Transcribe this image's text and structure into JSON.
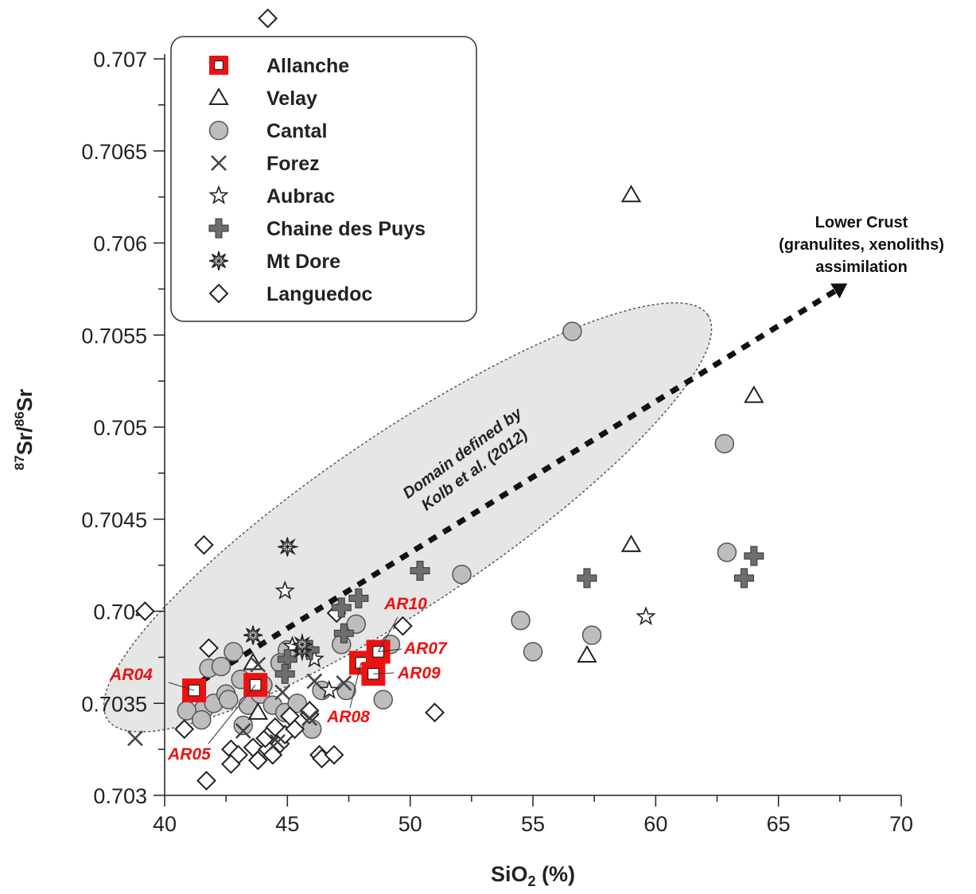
{
  "chart_data": {
    "type": "scatter",
    "xlabel_main": "SiO",
    "xlabel_sub": "2",
    "xlabel_tail": " (%)",
    "ylabel_sup1": "87",
    "ylabel_mid": "Sr/",
    "ylabel_sup2": "86",
    "ylabel_end": "Sr",
    "xlim": [
      40,
      70
    ],
    "ylim": [
      0.703,
      0.707
    ],
    "x_ticks": [
      "40",
      "45",
      "50",
      "55",
      "60",
      "65",
      "70"
    ],
    "y_ticks": [
      "0.703",
      "0.7035",
      "0.704",
      "0.7045",
      "0.705",
      "0.7055",
      "0.706",
      "0.7065",
      "0.707"
    ],
    "legend": [
      {
        "name": "Allanche",
        "marker": "red-square"
      },
      {
        "name": "Velay",
        "marker": "triangle"
      },
      {
        "name": "Cantal",
        "marker": "grey-circle"
      },
      {
        "name": "Forez",
        "marker": "cross-x"
      },
      {
        "name": "Aubrac",
        "marker": "star"
      },
      {
        "name": "Chaine des Puys",
        "marker": "plus"
      },
      {
        "name": "Mt Dore",
        "marker": "spiky-star"
      },
      {
        "name": "Languedoc",
        "marker": "diamond"
      }
    ],
    "series": [
      {
        "name": "Allanche",
        "points": [
          [
            41.2,
            0.70357
          ],
          [
            43.7,
            0.7036
          ],
          [
            48.0,
            0.70372
          ],
          [
            48.5,
            0.70366
          ],
          [
            48.7,
            0.70378
          ]
        ]
      },
      {
        "name": "Velay",
        "points": [
          [
            59.0,
            0.70626
          ],
          [
            64.0,
            0.70517
          ],
          [
            59.0,
            0.70436
          ],
          [
            57.2,
            0.70376
          ],
          [
            43.6,
            0.70372
          ],
          [
            43.8,
            0.70345
          ]
        ]
      },
      {
        "name": "Cantal",
        "points": [
          [
            56.6,
            0.70552
          ],
          [
            62.8,
            0.70491
          ],
          [
            62.9,
            0.70432
          ],
          [
            52.1,
            0.7042
          ],
          [
            54.5,
            0.70395
          ],
          [
            55.0,
            0.70378
          ],
          [
            57.4,
            0.70387
          ],
          [
            47.8,
            0.70393
          ],
          [
            47.2,
            0.70382
          ],
          [
            45.0,
            0.70379
          ],
          [
            44.7,
            0.70372
          ],
          [
            48.4,
            0.70374
          ],
          [
            49.2,
            0.70382
          ],
          [
            48.9,
            0.70352
          ],
          [
            41.8,
            0.70369
          ],
          [
            42.3,
            0.7037
          ],
          [
            42.8,
            0.70378
          ],
          [
            41.6,
            0.70347
          ],
          [
            42.0,
            0.7035
          ],
          [
            42.5,
            0.70355
          ],
          [
            43.4,
            0.70349
          ],
          [
            43.1,
            0.70363
          ],
          [
            43.9,
            0.70355
          ],
          [
            44.4,
            0.70349
          ],
          [
            44.9,
            0.70345
          ],
          [
            45.4,
            0.7035
          ],
          [
            40.9,
            0.70346
          ],
          [
            41.5,
            0.70341
          ],
          [
            42.6,
            0.70352
          ],
          [
            43.2,
            0.70338
          ],
          [
            46.0,
            0.70336
          ],
          [
            46.4,
            0.70357
          ],
          [
            47.4,
            0.70357
          ],
          [
            44.0,
            0.7036
          ]
        ]
      },
      {
        "name": "Forez",
        "points": [
          [
            38.8,
            0.70331
          ],
          [
            46.1,
            0.70362
          ],
          [
            44.8,
            0.70356
          ],
          [
            43.8,
            0.70371
          ],
          [
            47.3,
            0.70361
          ],
          [
            45.9,
            0.70342
          ],
          [
            43.2,
            0.70335
          ],
          [
            44.6,
            0.70329
          ]
        ]
      },
      {
        "name": "Aubrac",
        "points": [
          [
            44.9,
            0.70411
          ],
          [
            59.6,
            0.70397
          ],
          [
            46.1,
            0.70374
          ],
          [
            45.2,
            0.70381
          ],
          [
            46.7,
            0.70357
          ]
        ]
      },
      {
        "name": "Chaine des Puys",
        "points": [
          [
            50.4,
            0.70422
          ],
          [
            57.2,
            0.70418
          ],
          [
            64.0,
            0.7043
          ],
          [
            63.6,
            0.70418
          ],
          [
            47.9,
            0.70407
          ],
          [
            47.2,
            0.70402
          ],
          [
            47.3,
            0.70388
          ],
          [
            45.0,
            0.70374
          ],
          [
            44.9,
            0.70366
          ],
          [
            45.9,
            0.70379
          ]
        ]
      },
      {
        "name": "Mt Dore",
        "points": [
          [
            45.0,
            0.70435
          ],
          [
            43.6,
            0.70387
          ],
          [
            45.6,
            0.70379
          ],
          [
            45.6,
            0.70382
          ]
        ]
      },
      {
        "name": "Languedoc",
        "points": [
          [
            44.2,
            0.70722
          ],
          [
            41.6,
            0.70436
          ],
          [
            39.2,
            0.704
          ],
          [
            47.0,
            0.70399
          ],
          [
            49.7,
            0.70392
          ],
          [
            41.8,
            0.7038
          ],
          [
            51.0,
            0.70345
          ],
          [
            40.8,
            0.70336
          ],
          [
            42.7,
            0.70325
          ],
          [
            43.0,
            0.70322
          ],
          [
            42.7,
            0.70317
          ],
          [
            41.7,
            0.70308
          ],
          [
            43.6,
            0.70326
          ],
          [
            43.8,
            0.70319
          ],
          [
            44.2,
            0.70325
          ],
          [
            44.1,
            0.70331
          ],
          [
            44.4,
            0.70335
          ],
          [
            44.7,
            0.70328
          ],
          [
            44.9,
            0.70333
          ],
          [
            45.3,
            0.70336
          ],
          [
            45.1,
            0.70343
          ],
          [
            46.3,
            0.70322
          ],
          [
            46.4,
            0.7032
          ],
          [
            46.9,
            0.70322
          ],
          [
            44.4,
            0.70322
          ],
          [
            44.5,
            0.70337
          ],
          [
            45.9,
            0.70344
          ],
          [
            45.9,
            0.70346
          ]
        ]
      }
    ],
    "sample_labels": [
      {
        "text": "AR04",
        "x": 41.2,
        "y": 0.70357
      },
      {
        "text": "AR05",
        "x": 43.7,
        "y": 0.7036
      },
      {
        "text": "AR08",
        "x": 48.0,
        "y": 0.70372
      },
      {
        "text": "AR09",
        "x": 48.5,
        "y": 0.70366
      },
      {
        "text": "AR07",
        "x": 48.7,
        "y": 0.70378
      },
      {
        "text": "AR10",
        "x": 48.7,
        "y": 0.70378
      }
    ],
    "domain": {
      "line1": "Domain defined by",
      "line2": "Kolb et al. (2012)",
      "center": [
        49.9,
        0.70451
      ],
      "fill": "#e6e6e6"
    },
    "trend_arrow": {
      "from": [
        41.5,
        0.70362
      ],
      "to": [
        67.8,
        0.70578
      ]
    },
    "arrow_annotation": [
      "Lower Crust",
      "(granulites, xenoliths)",
      "assimilation"
    ],
    "colors": {
      "allanche": "#ee1111",
      "cantal_fill": "#bdbdbd",
      "grey_marker": "#6e6e6e",
      "outline": "#333333"
    }
  }
}
